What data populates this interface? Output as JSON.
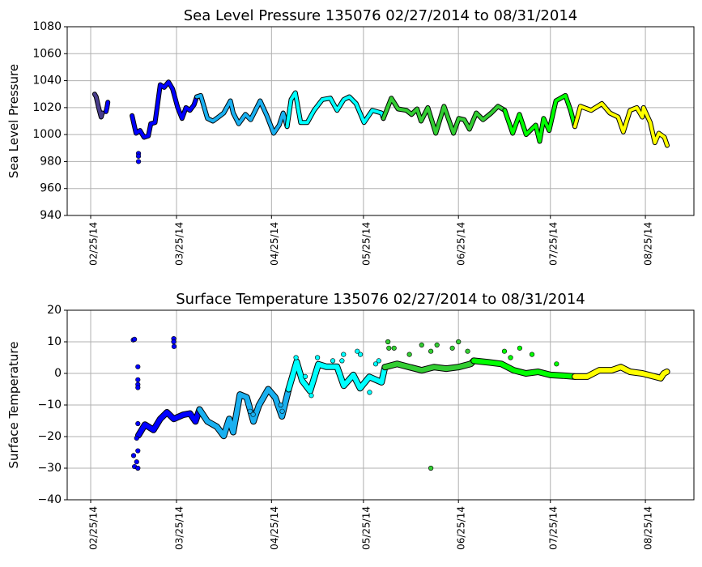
{
  "chart_data": [
    {
      "type": "scatter",
      "title": "Sea Level Pressure 135076  02/27/2014 to 08/31/2014",
      "xlabel": "",
      "ylabel": "Sea Level Pressure",
      "x_origin": "02/25/14",
      "xlim": [
        -7.7,
        197
      ],
      "ylim": [
        940,
        1080
      ],
      "yticks": [
        940,
        960,
        980,
        1000,
        1020,
        1040,
        1060,
        1080
      ],
      "xticks": [
        {
          "day": 0,
          "label": "02/25/14"
        },
        {
          "day": 28,
          "label": "03/25/14"
        },
        {
          "day": 59,
          "label": "04/25/14"
        },
        {
          "day": 89,
          "label": "05/25/14"
        },
        {
          "day": 120,
          "label": "06/25/14"
        },
        {
          "day": 150,
          "label": "07/25/14"
        },
        {
          "day": 181,
          "label": "08/25/14"
        }
      ],
      "grid": true,
      "series": [
        {
          "color": "#483D8B",
          "points": [
            [
              1.3,
              1030
            ],
            [
              1.8,
              1028
            ],
            [
              2.6,
              1020
            ],
            [
              3.4,
              1013
            ],
            [
              3.8,
              1016
            ]
          ]
        },
        {
          "color": "#0000FF",
          "points": [
            [
              5,
              1017
            ],
            [
              5.3,
              1020
            ],
            [
              5.6,
              1024
            ]
          ]
        },
        {
          "color": "#0000FF",
          "points": [
            [
              13.5,
              1014
            ],
            [
              14.8,
              1001
            ],
            [
              16.1,
              1003
            ],
            [
              17.4,
              998
            ],
            [
              18.8,
              999
            ],
            [
              19.6,
              1008
            ],
            [
              21,
              1009
            ],
            [
              21.8,
              1022
            ],
            [
              22.7,
              1037
            ],
            [
              24,
              1035
            ],
            [
              25.4,
              1039
            ],
            [
              26.7,
              1034
            ],
            [
              28.4,
              1020
            ],
            [
              29.8,
              1012
            ],
            [
              31.1,
              1020
            ],
            [
              32.4,
              1018
            ],
            [
              33.7,
              1022
            ],
            [
              34.6,
              1028
            ]
          ]
        },
        {
          "color": "#1AB0F0",
          "points": [
            [
              34.6,
              1028
            ],
            [
              35.9,
              1029
            ],
            [
              38.1,
              1012
            ],
            [
              39.9,
              1010
            ],
            [
              41.7,
              1013
            ],
            [
              43.4,
              1016
            ],
            [
              45.6,
              1025
            ],
            [
              46.5,
              1016
            ],
            [
              48.3,
              1008
            ],
            [
              50.5,
              1015
            ],
            [
              52.2,
              1011
            ],
            [
              55.3,
              1025
            ],
            [
              57.5,
              1014
            ],
            [
              59.7,
              1001
            ],
            [
              61.5,
              1007
            ],
            [
              62.8,
              1016
            ],
            [
              64.1,
              1006
            ]
          ]
        },
        {
          "color": "#00FFFF",
          "points": [
            [
              64.1,
              1006
            ],
            [
              65.4,
              1026
            ],
            [
              66.8,
              1031
            ],
            [
              68.5,
              1009
            ],
            [
              70.7,
              1009
            ],
            [
              72.9,
              1018
            ],
            [
              75.6,
              1026
            ],
            [
              78.2,
              1027
            ],
            [
              80.4,
              1018
            ],
            [
              82.6,
              1026
            ],
            [
              84.4,
              1028
            ],
            [
              86.6,
              1023
            ],
            [
              89.2,
              1009
            ],
            [
              91.9,
              1018
            ],
            [
              94.9,
              1016
            ],
            [
              95.5,
              1012
            ]
          ]
        },
        {
          "color": "#32CD32",
          "points": [
            [
              95.5,
              1012
            ],
            [
              98.1,
              1027
            ],
            [
              100.3,
              1019
            ],
            [
              103,
              1018
            ],
            [
              104.7,
              1015
            ],
            [
              106.5,
              1019
            ],
            [
              107.8,
              1010
            ],
            [
              110,
              1020
            ],
            [
              112.6,
              1001
            ],
            [
              115.3,
              1021
            ],
            [
              118.4,
              1001
            ],
            [
              120.1,
              1012
            ],
            [
              121.9,
              1011
            ],
            [
              123.6,
              1004
            ],
            [
              125.8,
              1016
            ],
            [
              128,
              1011
            ],
            [
              130.7,
              1016
            ],
            [
              132.9,
              1021
            ],
            [
              135.1,
              1018
            ]
          ]
        },
        {
          "color": "#00FF00",
          "points": [
            [
              135.1,
              1018
            ],
            [
              137.7,
              1001
            ],
            [
              139.9,
              1015
            ],
            [
              142.1,
              1000
            ],
            [
              145.2,
              1007
            ],
            [
              146.5,
              995
            ],
            [
              147.8,
              1012
            ],
            [
              149.6,
              1003
            ],
            [
              151.8,
              1025
            ],
            [
              154.9,
              1029
            ],
            [
              156.6,
              1018
            ],
            [
              158,
              1006
            ]
          ]
        },
        {
          "color": "#FFFF00",
          "points": [
            [
              158,
              1006
            ],
            [
              159.8,
              1021
            ],
            [
              163.3,
              1018
            ],
            [
              166.8,
              1023
            ],
            [
              169.4,
              1016
            ],
            [
              172.1,
              1013
            ],
            [
              173.8,
              1002
            ],
            [
              176,
              1018
            ],
            [
              178.2,
              1020
            ],
            [
              180,
              1013
            ],
            [
              180.4,
              1020
            ],
            [
              182.6,
              1009
            ],
            [
              184.1,
              994
            ],
            [
              185.4,
              1001
            ],
            [
              187.2,
              998
            ],
            [
              188.1,
              992
            ]
          ]
        }
      ],
      "outliers": [
        {
          "color": "#0000FF",
          "points": [
            [
              15.6,
              986
            ],
            [
              15.6,
              984
            ],
            [
              15.6,
              980
            ]
          ]
        }
      ]
    },
    {
      "type": "scatter",
      "title": "Surface Temperature 135076  02/27/2014 to 08/31/2014",
      "xlabel": "",
      "ylabel": "Surface Temperature",
      "x_origin": "02/25/14",
      "xlim": [
        -7.7,
        197
      ],
      "ylim": [
        -40,
        20
      ],
      "yticks": [
        -40,
        -30,
        -20,
        -10,
        0,
        10,
        20
      ],
      "xticks": [
        {
          "day": 0,
          "label": "02/25/14"
        },
        {
          "day": 28,
          "label": "03/25/14"
        },
        {
          "day": 59,
          "label": "04/25/14"
        },
        {
          "day": 89,
          "label": "05/25/14"
        },
        {
          "day": 120,
          "label": "06/25/14"
        },
        {
          "day": 150,
          "label": "07/25/14"
        },
        {
          "day": 181,
          "label": "08/25/14"
        }
      ],
      "grid": true,
      "series": [
        {
          "color": "#0000FF",
          "points": [
            [
              15.6,
              -19.6
            ],
            [
              17.7,
              -16.2
            ],
            [
              20.5,
              -17.9
            ],
            [
              22.7,
              -14.4
            ],
            [
              24.9,
              -12.3
            ],
            [
              27.1,
              -14.4
            ],
            [
              30.2,
              -13.1
            ],
            [
              32.4,
              -12.7
            ],
            [
              34.2,
              -15.2
            ],
            [
              35.5,
              -11.4
            ]
          ]
        },
        {
          "color": "#1AB0F0",
          "points": [
            [
              35.5,
              -11.4
            ],
            [
              38.1,
              -15.2
            ],
            [
              41.2,
              -16.9
            ],
            [
              43.4,
              -19.8
            ],
            [
              45.2,
              -14.4
            ],
            [
              46.5,
              -18.6
            ],
            [
              48.7,
              -6.7
            ],
            [
              50.9,
              -7.6
            ],
            [
              53.1,
              -15.2
            ],
            [
              54.9,
              -10.1
            ],
            [
              57.9,
              -5
            ],
            [
              60.2,
              -7.6
            ],
            [
              62.4,
              -13.6
            ],
            [
              64.6,
              -5
            ]
          ]
        },
        {
          "color": "#00FFFF",
          "points": [
            [
              64.6,
              -5
            ],
            [
              67.2,
              3.7
            ],
            [
              69,
              -2.3
            ],
            [
              71.6,
              -5.6
            ],
            [
              74.3,
              2.9
            ],
            [
              76.9,
              2.1
            ],
            [
              80.4,
              2.1
            ],
            [
              82.6,
              -3.9
            ],
            [
              85.7,
              -0.5
            ],
            [
              87.9,
              -4.7
            ],
            [
              90.9,
              -1.1
            ],
            [
              94.9,
              -2.8
            ],
            [
              96,
              2
            ]
          ]
        },
        {
          "color": "#32CD32",
          "points": [
            [
              96,
              2
            ],
            [
              100,
              3
            ],
            [
              104,
              2
            ],
            [
              108,
              1
            ],
            [
              112,
              2
            ],
            [
              116,
              1.5
            ],
            [
              120,
              2
            ],
            [
              124,
              3
            ],
            [
              125,
              4
            ]
          ]
        },
        {
          "color": "#00FF00",
          "points": [
            [
              125,
              4
            ],
            [
              130,
              3.5
            ],
            [
              134,
              3
            ],
            [
              138,
              1
            ],
            [
              142,
              0
            ],
            [
              146,
              0.5
            ],
            [
              150,
              -0.5
            ],
            [
              154,
              -0.7
            ],
            [
              158,
              -1
            ]
          ]
        },
        {
          "color": "#FFFF00",
          "points": [
            [
              158,
              -1
            ],
            [
              162,
              -1
            ],
            [
              166,
              1
            ],
            [
              170,
              1
            ],
            [
              173,
              2
            ],
            [
              176,
              0.5
            ],
            [
              180,
              0
            ],
            [
              184,
              -1
            ],
            [
              186,
              -1.5
            ],
            [
              187,
              0
            ],
            [
              188,
              0.5
            ]
          ]
        }
      ],
      "outliers": [
        {
          "color": "#0000FF",
          "points": [
            [
              13.9,
              10.6
            ],
            [
              14.3,
              10.8
            ],
            [
              27.1,
              11
            ],
            [
              27.1,
              10
            ],
            [
              27.2,
              8.5
            ],
            [
              15.4,
              2.1
            ],
            [
              15.4,
              -2
            ],
            [
              15.4,
              -3.5
            ],
            [
              15.4,
              -4.5
            ],
            [
              15.4,
              -15.9
            ],
            [
              14,
              -26
            ],
            [
              15,
              -28
            ],
            [
              14.3,
              -29.5
            ],
            [
              15.4,
              -30
            ],
            [
              15.4,
              -24.5
            ],
            [
              15,
              -20.5
            ]
          ]
        },
        {
          "color": "#1AB0F0",
          "points": [
            [
              52,
              -12
            ],
            [
              53,
              -13
            ],
            [
              62,
              -10
            ],
            [
              62.5,
              -12
            ]
          ]
        },
        {
          "color": "#00FFFF",
          "points": [
            [
              67,
              5
            ],
            [
              74,
              5
            ],
            [
              79,
              4
            ],
            [
              82,
              4
            ],
            [
              82.5,
              6
            ],
            [
              87,
              7
            ],
            [
              88,
              6
            ],
            [
              93,
              3
            ],
            [
              94,
              4
            ],
            [
              70,
              -1
            ],
            [
              72,
              -7
            ],
            [
              91,
              -6
            ]
          ]
        },
        {
          "color": "#32CD32",
          "points": [
            [
              97,
              10
            ],
            [
              97.3,
              8
            ],
            [
              99,
              8
            ],
            [
              104,
              6
            ],
            [
              108,
              9
            ],
            [
              111,
              7
            ],
            [
              113,
              9
            ],
            [
              118,
              8
            ],
            [
              120,
              10
            ],
            [
              123,
              7
            ],
            [
              111,
              -30
            ]
          ]
        },
        {
          "color": "#00FF00",
          "points": [
            [
              135,
              7
            ],
            [
              137,
              5
            ],
            [
              140,
              8
            ],
            [
              144,
              6
            ],
            [
              152,
              3
            ]
          ]
        }
      ]
    }
  ]
}
